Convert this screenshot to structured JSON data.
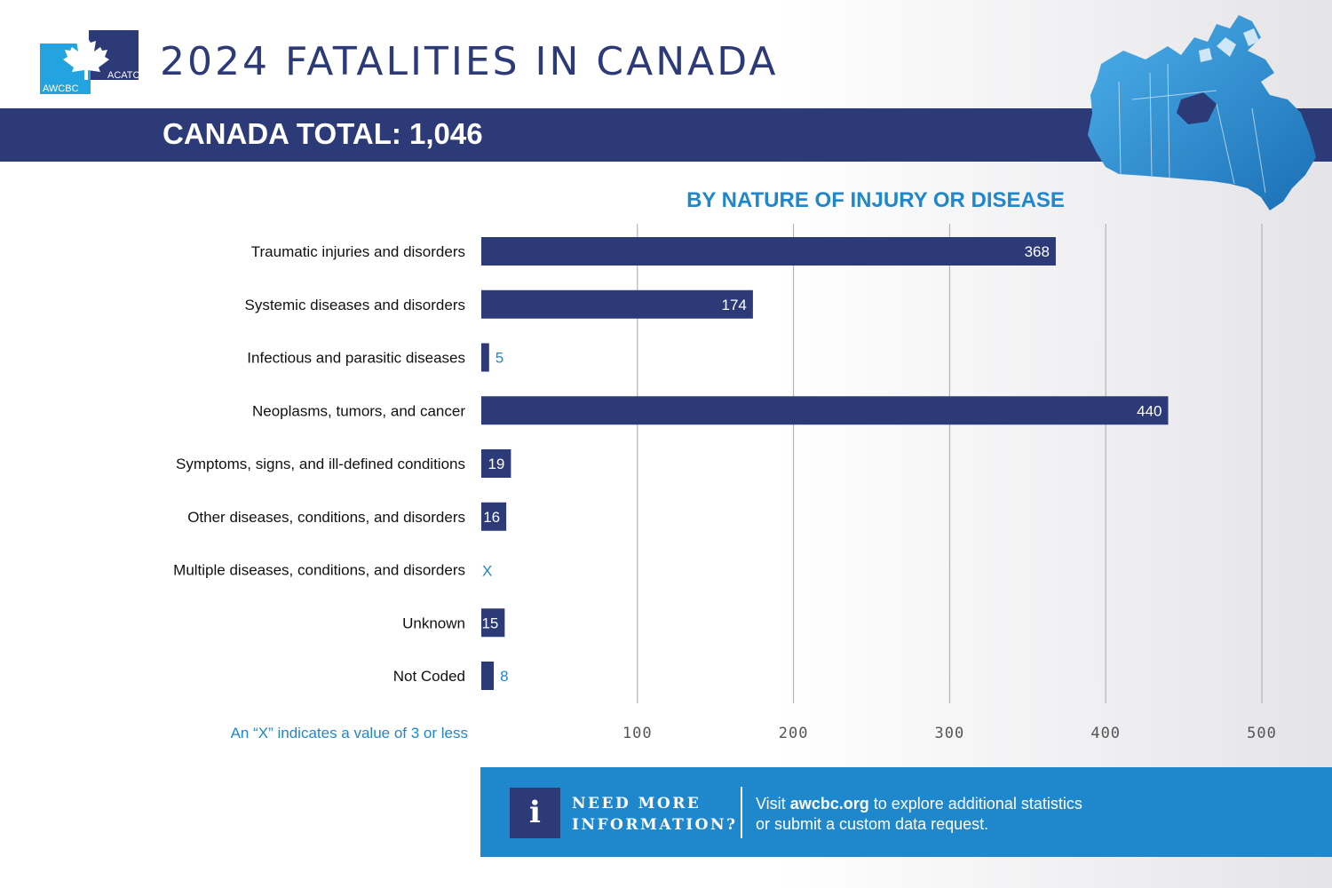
{
  "logo": {
    "left_text": "AWCBC",
    "right_text": "ACATC"
  },
  "header": {
    "title": "2024 FATALITIES IN CANADA"
  },
  "total": {
    "label": "CANADA TOTAL: 1,046"
  },
  "colors": {
    "navy": "#2c3a78",
    "accent_blue": "#1f87cc",
    "map_blue": "#2a8fd6",
    "white": "#ffffff"
  },
  "icons": {
    "info": "info-icon",
    "map": "canada-map-icon",
    "maple": "maple-leaf-icon"
  },
  "chart_data": {
    "type": "bar",
    "orientation": "horizontal",
    "title": "BY NATURE OF INJURY OR DISEASE",
    "categories": [
      "Traumatic injuries and disorders",
      "Systemic diseases and disorders",
      "Infectious and parasitic diseases",
      "Neoplasms, tumors, and cancer",
      "Symptoms, signs, and ill-defined conditions",
      "Other diseases, conditions, and disorders",
      "Multiple diseases, conditions, and disorders",
      "Unknown",
      "Not Coded"
    ],
    "values": [
      368,
      174,
      5,
      440,
      19,
      16,
      null,
      15,
      8
    ],
    "value_labels": [
      "368",
      "174",
      "5",
      "440",
      "19",
      "16",
      "X",
      "15",
      "8"
    ],
    "xlim": [
      0,
      500
    ],
    "xticks": [
      100,
      200,
      300,
      400,
      500
    ],
    "grid": true,
    "note": "An “X” indicates a value of 3 or less"
  },
  "footer": {
    "icon_glyph": "i",
    "heading_line1": "NEED MORE",
    "heading_line2": "INFORMATION?",
    "text_before": "Visit ",
    "link": "awcbc.org",
    "text_after": " to explore additional statistics",
    "line2": "or submit a custom data request."
  }
}
